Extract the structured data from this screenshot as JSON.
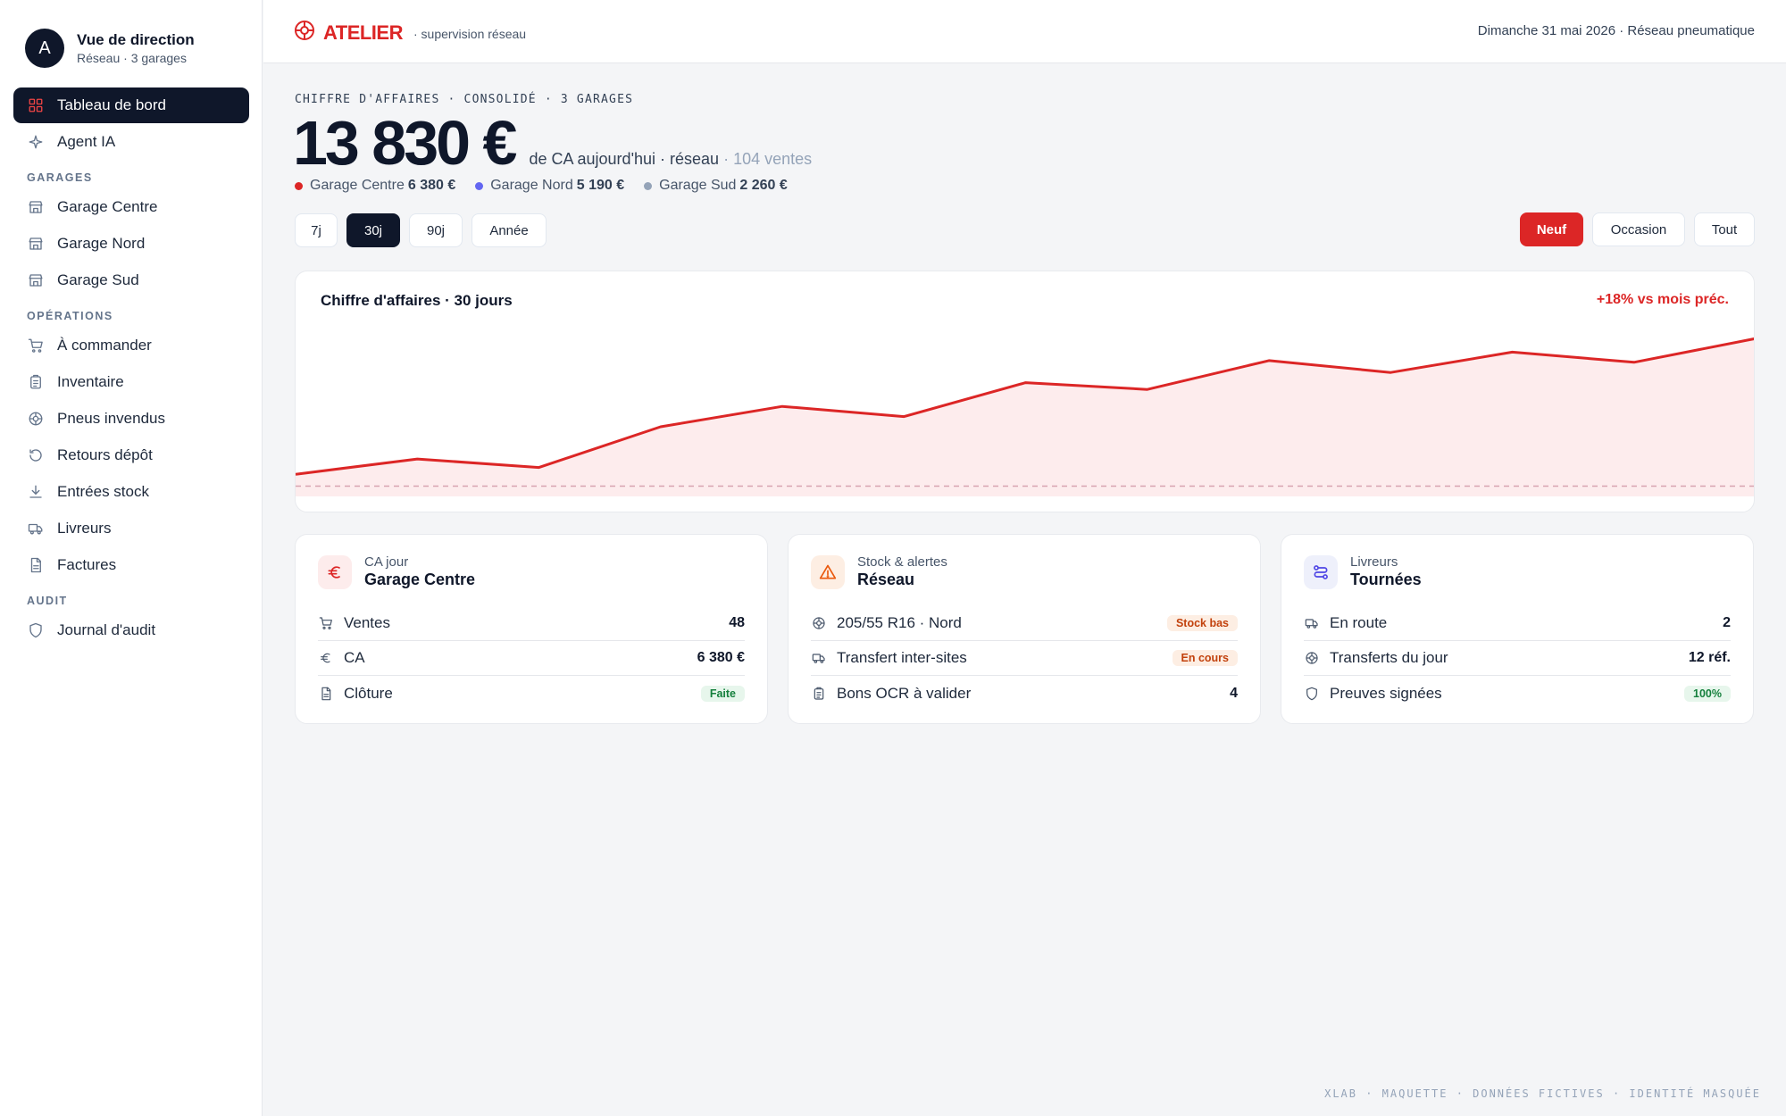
{
  "profile": {
    "initial": "A",
    "title": "Vue de direction",
    "subtitle": "Réseau · 3 garages"
  },
  "sidebar": {
    "top_items": [
      {
        "label": "Tableau de bord",
        "icon": "grid-icon",
        "active": true
      },
      {
        "label": "Agent IA",
        "icon": "sparkle-icon",
        "active": false
      }
    ],
    "sections": [
      {
        "title": "GARAGES",
        "items": [
          {
            "label": "Garage Centre",
            "icon": "store-icon"
          },
          {
            "label": "Garage Nord",
            "icon": "store-icon"
          },
          {
            "label": "Garage Sud",
            "icon": "store-icon"
          }
        ]
      },
      {
        "title": "OPÉRATIONS",
        "items": [
          {
            "label": "À commander",
            "icon": "cart-icon"
          },
          {
            "label": "Inventaire",
            "icon": "clipboard-icon"
          },
          {
            "label": "Pneus invendus",
            "icon": "tire-icon"
          },
          {
            "label": "Retours dépôt",
            "icon": "return-icon"
          },
          {
            "label": "Entrées stock",
            "icon": "download-icon"
          },
          {
            "label": "Livreurs",
            "icon": "truck-icon"
          },
          {
            "label": "Factures",
            "icon": "document-icon"
          }
        ]
      },
      {
        "title": "AUDIT",
        "items": [
          {
            "label": "Journal d'audit",
            "icon": "shield-icon"
          }
        ]
      }
    ]
  },
  "header": {
    "brand": "ATELIER",
    "brand_sub": "· supervision réseau",
    "date_info": "Dimanche 31 mai 2026 · Réseau pneumatique"
  },
  "summary": {
    "kicker": "CHIFFRE D'AFFAIRES · CONSOLIDÉ · 3 GARAGES",
    "amount": "13 830 €",
    "desc": "de CA aujourd'hui · réseau",
    "sales": "· 104 ventes",
    "garages": [
      {
        "name": "Garage Centre",
        "value": "6 380 €",
        "color": "#dc2626"
      },
      {
        "name": "Garage Nord",
        "value": "5 190 €",
        "color": "#6366f1"
      },
      {
        "name": "Garage Sud",
        "value": "2 260 €",
        "color": "#94a3b8"
      }
    ]
  },
  "periods": [
    "7j",
    "30j",
    "90j",
    "Année"
  ],
  "active_period": "30j",
  "filters": [
    "Neuf",
    "Occasion",
    "Tout"
  ],
  "active_filter": "Neuf",
  "chart_data": {
    "type": "area",
    "title": "Chiffre d'affaires · 30 jours",
    "delta": "+18% vs mois préc.",
    "x": [
      1,
      2,
      3,
      4,
      5,
      6,
      7,
      8,
      9,
      10,
      11,
      12,
      13
    ],
    "values": [
      12,
      21,
      16,
      40,
      52,
      46,
      66,
      62,
      79,
      72,
      84,
      78,
      92
    ],
    "baseline": 5,
    "ylim": [
      0,
      100
    ],
    "color": "#dc2626",
    "fill": "#fdeced"
  },
  "cards": [
    {
      "kicker": "CA jour",
      "title": "Garage Centre",
      "icon": "euro-icon",
      "icon_bg": "#fdecec",
      "icon_color": "#dc2626",
      "rows": [
        {
          "label": "Ventes",
          "icon": "cart-icon",
          "value": "48",
          "kind": "value"
        },
        {
          "label": "CA",
          "icon": "euro-icon",
          "value": "6 380 €",
          "kind": "value"
        },
        {
          "label": "Clôture",
          "icon": "document-icon",
          "value": "Faite",
          "kind": "green"
        }
      ]
    },
    {
      "kicker": "Stock & alertes",
      "title": "Réseau",
      "icon": "warning-icon",
      "icon_bg": "#fdeee3",
      "icon_color": "#ea580c",
      "rows": [
        {
          "label": "205/55 R16 · Nord",
          "icon": "tire-icon",
          "value": "Stock bas",
          "kind": "orange"
        },
        {
          "label": "Transfert inter-sites",
          "icon": "truck-icon",
          "value": "En cours",
          "kind": "orange"
        },
        {
          "label": "Bons OCR à valider",
          "icon": "clipboard-icon",
          "value": "4",
          "kind": "value"
        }
      ]
    },
    {
      "kicker": "Livreurs",
      "title": "Tournées",
      "icon": "route-icon",
      "icon_bg": "#eef0fb",
      "icon_color": "#4f46e5",
      "rows": [
        {
          "label": "En route",
          "icon": "truck-icon",
          "value": "2",
          "kind": "value"
        },
        {
          "label": "Transferts du jour",
          "icon": "tire-icon",
          "value": "12 réf.",
          "kind": "value"
        },
        {
          "label": "Preuves signées",
          "icon": "shield-icon",
          "value": "100%",
          "kind": "green"
        }
      ]
    }
  ],
  "footer": "XLAB · MAQUETTE · DONNÉES FICTIVES · IDENTITÉ MASQUÉE"
}
